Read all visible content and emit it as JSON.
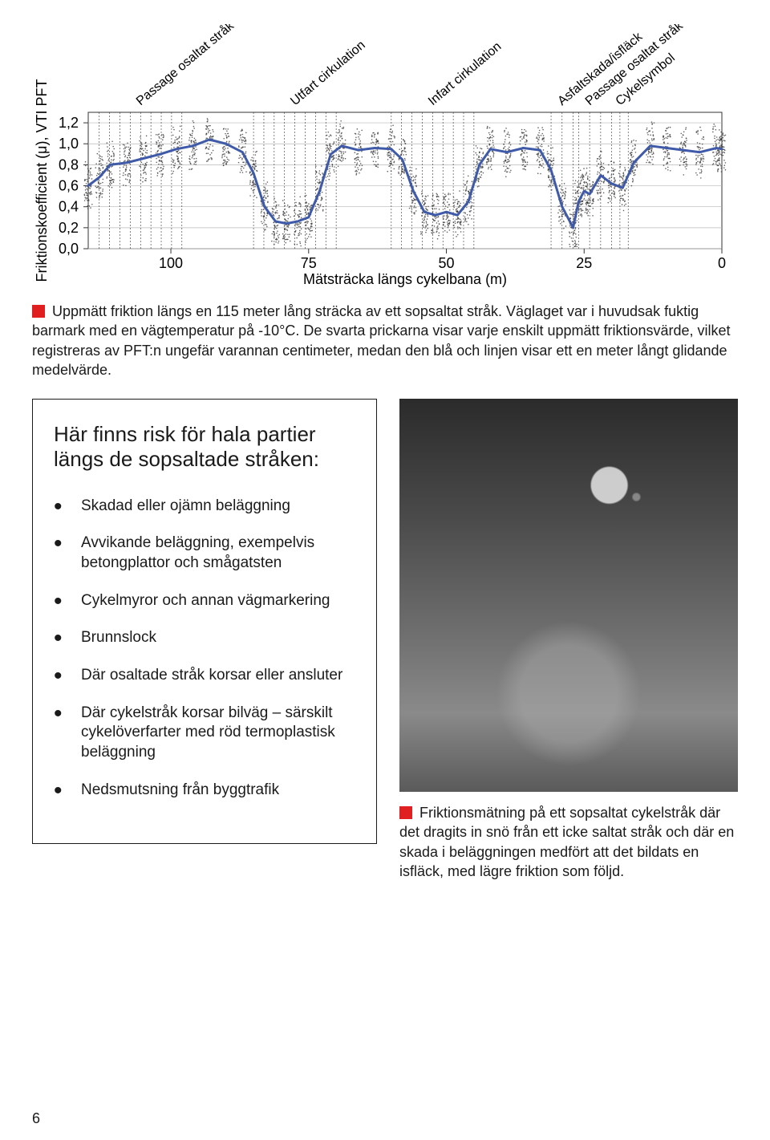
{
  "page_number": "6",
  "chart": {
    "type": "line",
    "ylabel": "Friktionskoefficient (μ), VTI PFT",
    "xlabel": "Mätsträcka längs cykelbana (m)",
    "ylim": [
      0.0,
      1.3
    ],
    "yticks": [
      0.0,
      0.2,
      0.4,
      0.6,
      0.8,
      1.0,
      1.2
    ],
    "ytick_labels": [
      "0,0",
      "0,2",
      "0,4",
      "0,6",
      "0,8",
      "1,0",
      "1,2"
    ],
    "xlim": [
      115,
      0
    ],
    "xticks": [
      100,
      75,
      50,
      25,
      0
    ],
    "xtick_labels": [
      "100",
      "75",
      "50",
      "25",
      "0"
    ],
    "grid_color": "#b8b8b8",
    "background_color": "#ffffff",
    "line_color": "#3e5aa8",
    "line_width": 3,
    "scatter_color": "#3a3a3a",
    "axis_fontsize": 18,
    "label_fontsize": 18,
    "annotations": [
      {
        "x_range": [
          113,
          98
        ],
        "text": "Passage osaltat stråk"
      },
      {
        "x_range": [
          85,
          70
        ],
        "text": "Utfart cirkulation"
      },
      {
        "x_range": [
          60,
          45
        ],
        "text": "Infart cirkulation"
      },
      {
        "x_range": [
          31,
          27
        ],
        "text": "Asfaltskada/isfläck"
      },
      {
        "x_range": [
          26,
          22
        ],
        "text": "Passage osaltat stråk"
      },
      {
        "x_range": [
          20,
          17
        ],
        "text": "Cykelsymbol"
      }
    ],
    "line_points": [
      [
        115,
        0.6
      ],
      [
        113,
        0.68
      ],
      [
        111,
        0.8
      ],
      [
        108,
        0.82
      ],
      [
        105,
        0.86
      ],
      [
        102,
        0.9
      ],
      [
        99,
        0.95
      ],
      [
        96,
        0.98
      ],
      [
        93,
        1.04
      ],
      [
        90,
        1.0
      ],
      [
        87,
        0.92
      ],
      [
        85,
        0.72
      ],
      [
        83,
        0.4
      ],
      [
        81,
        0.26
      ],
      [
        79,
        0.24
      ],
      [
        77,
        0.26
      ],
      [
        75,
        0.3
      ],
      [
        73,
        0.55
      ],
      [
        71,
        0.9
      ],
      [
        69,
        0.98
      ],
      [
        66,
        0.94
      ],
      [
        63,
        0.96
      ],
      [
        60,
        0.95
      ],
      [
        58,
        0.85
      ],
      [
        56,
        0.55
      ],
      [
        54,
        0.35
      ],
      [
        52,
        0.32
      ],
      [
        50,
        0.35
      ],
      [
        48,
        0.32
      ],
      [
        46,
        0.45
      ],
      [
        44,
        0.8
      ],
      [
        42,
        0.95
      ],
      [
        39,
        0.92
      ],
      [
        36,
        0.96
      ],
      [
        33,
        0.94
      ],
      [
        31,
        0.75
      ],
      [
        29,
        0.4
      ],
      [
        27,
        0.2
      ],
      [
        26,
        0.45
      ],
      [
        25,
        0.55
      ],
      [
        24,
        0.52
      ],
      [
        22,
        0.7
      ],
      [
        20,
        0.62
      ],
      [
        18,
        0.58
      ],
      [
        16,
        0.82
      ],
      [
        13,
        0.98
      ],
      [
        10,
        0.96
      ],
      [
        7,
        0.94
      ],
      [
        4,
        0.92
      ],
      [
        1,
        0.96
      ],
      [
        0,
        0.95
      ]
    ]
  },
  "chart_caption": "Uppmätt friktion längs en 115 meter lång sträcka av ett sopsaltat stråk. Väglaget var i huvudsak fuktig barmark med en vägtemperatur på -10°C. De svarta prickarna visar varje enskilt uppmätt friktionsvärde, vilket registreras av PFT:n ungefär varannan centimeter, medan den blå och linjen visar ett en meter långt glidande medelvärde.",
  "marker_color": "#e02020",
  "box": {
    "title": "Här finns risk för hala partier längs de sopsaltade stråken:",
    "items": [
      "Skadad eller ojämn beläggning",
      "Avvikande beläggning, exempelvis betongplattor och smågatsten",
      "Cykelmyror och annan vägmarkering",
      "Brunnslock",
      "Där osaltade stråk korsar eller ansluter",
      "Där cykelstråk korsar bilväg – särskilt cykelöverfarter med röd termoplastisk beläggning",
      "Nedsmutsning från byggtrafik"
    ]
  },
  "photo_caption": "Friktionsmätning på ett sopsaltat cykelstråk där det dragits in snö från ett icke saltat stråk och där en skada i beläggningen medfört att det bildats en isfläck, med lägre friktion som följd."
}
